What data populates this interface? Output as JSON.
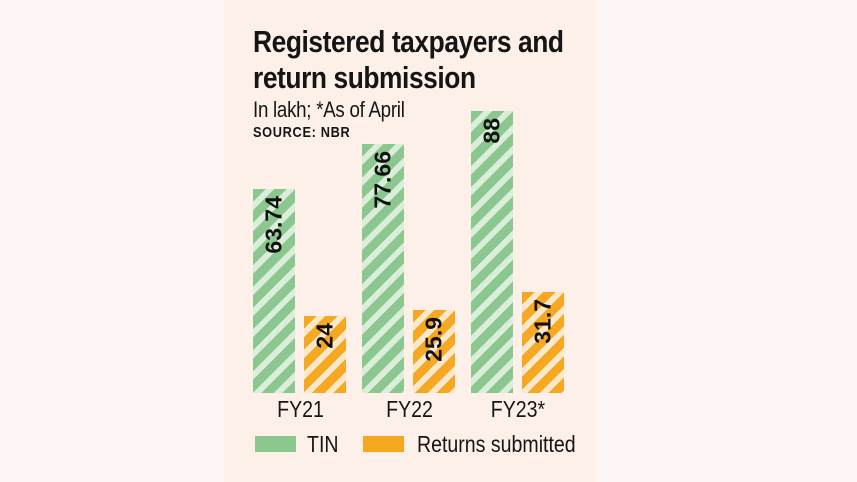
{
  "header": {
    "title": "Registered taxpayers and\nreturn submission",
    "subtitle": "In lakh; *As of April",
    "source": "SOURCE: NBR"
  },
  "colors": {
    "background_outer": "#fdf6f4",
    "background_panel": "#fcf0e9",
    "tin_green": "#8bc78f",
    "tin_green_stripe": "#daeeda",
    "returns_orange": "#f7a823",
    "returns_orange_stripe": "#fce9cb",
    "text": "#151515"
  },
  "chart_data": {
    "type": "bar",
    "title": "Registered taxpayers and return submission",
    "subtitle": "In lakh; *As of April",
    "source": "SOURCE: NBR",
    "unit": "lakh",
    "categories": [
      "FY21",
      "FY22",
      "FY23*"
    ],
    "series": [
      {
        "name": "TIN",
        "color": "#8bc78f",
        "stripe_color": "#daeeda",
        "values": [
          63.74,
          77.66,
          88
        ]
      },
      {
        "name": "Returns submitted",
        "color": "#f7a823",
        "stripe_color": "#fce9cb",
        "values": [
          24,
          25.9,
          31.7
        ]
      }
    ],
    "value_labels": "rotated-90-inside-top",
    "legend_position": "bottom",
    "grid": false,
    "ylim": [
      0,
      88
    ]
  },
  "legend": {
    "items": [
      {
        "label": "TIN",
        "color": "#8bc78f"
      },
      {
        "label": "Returns submitted",
        "color": "#f7a823"
      }
    ]
  }
}
